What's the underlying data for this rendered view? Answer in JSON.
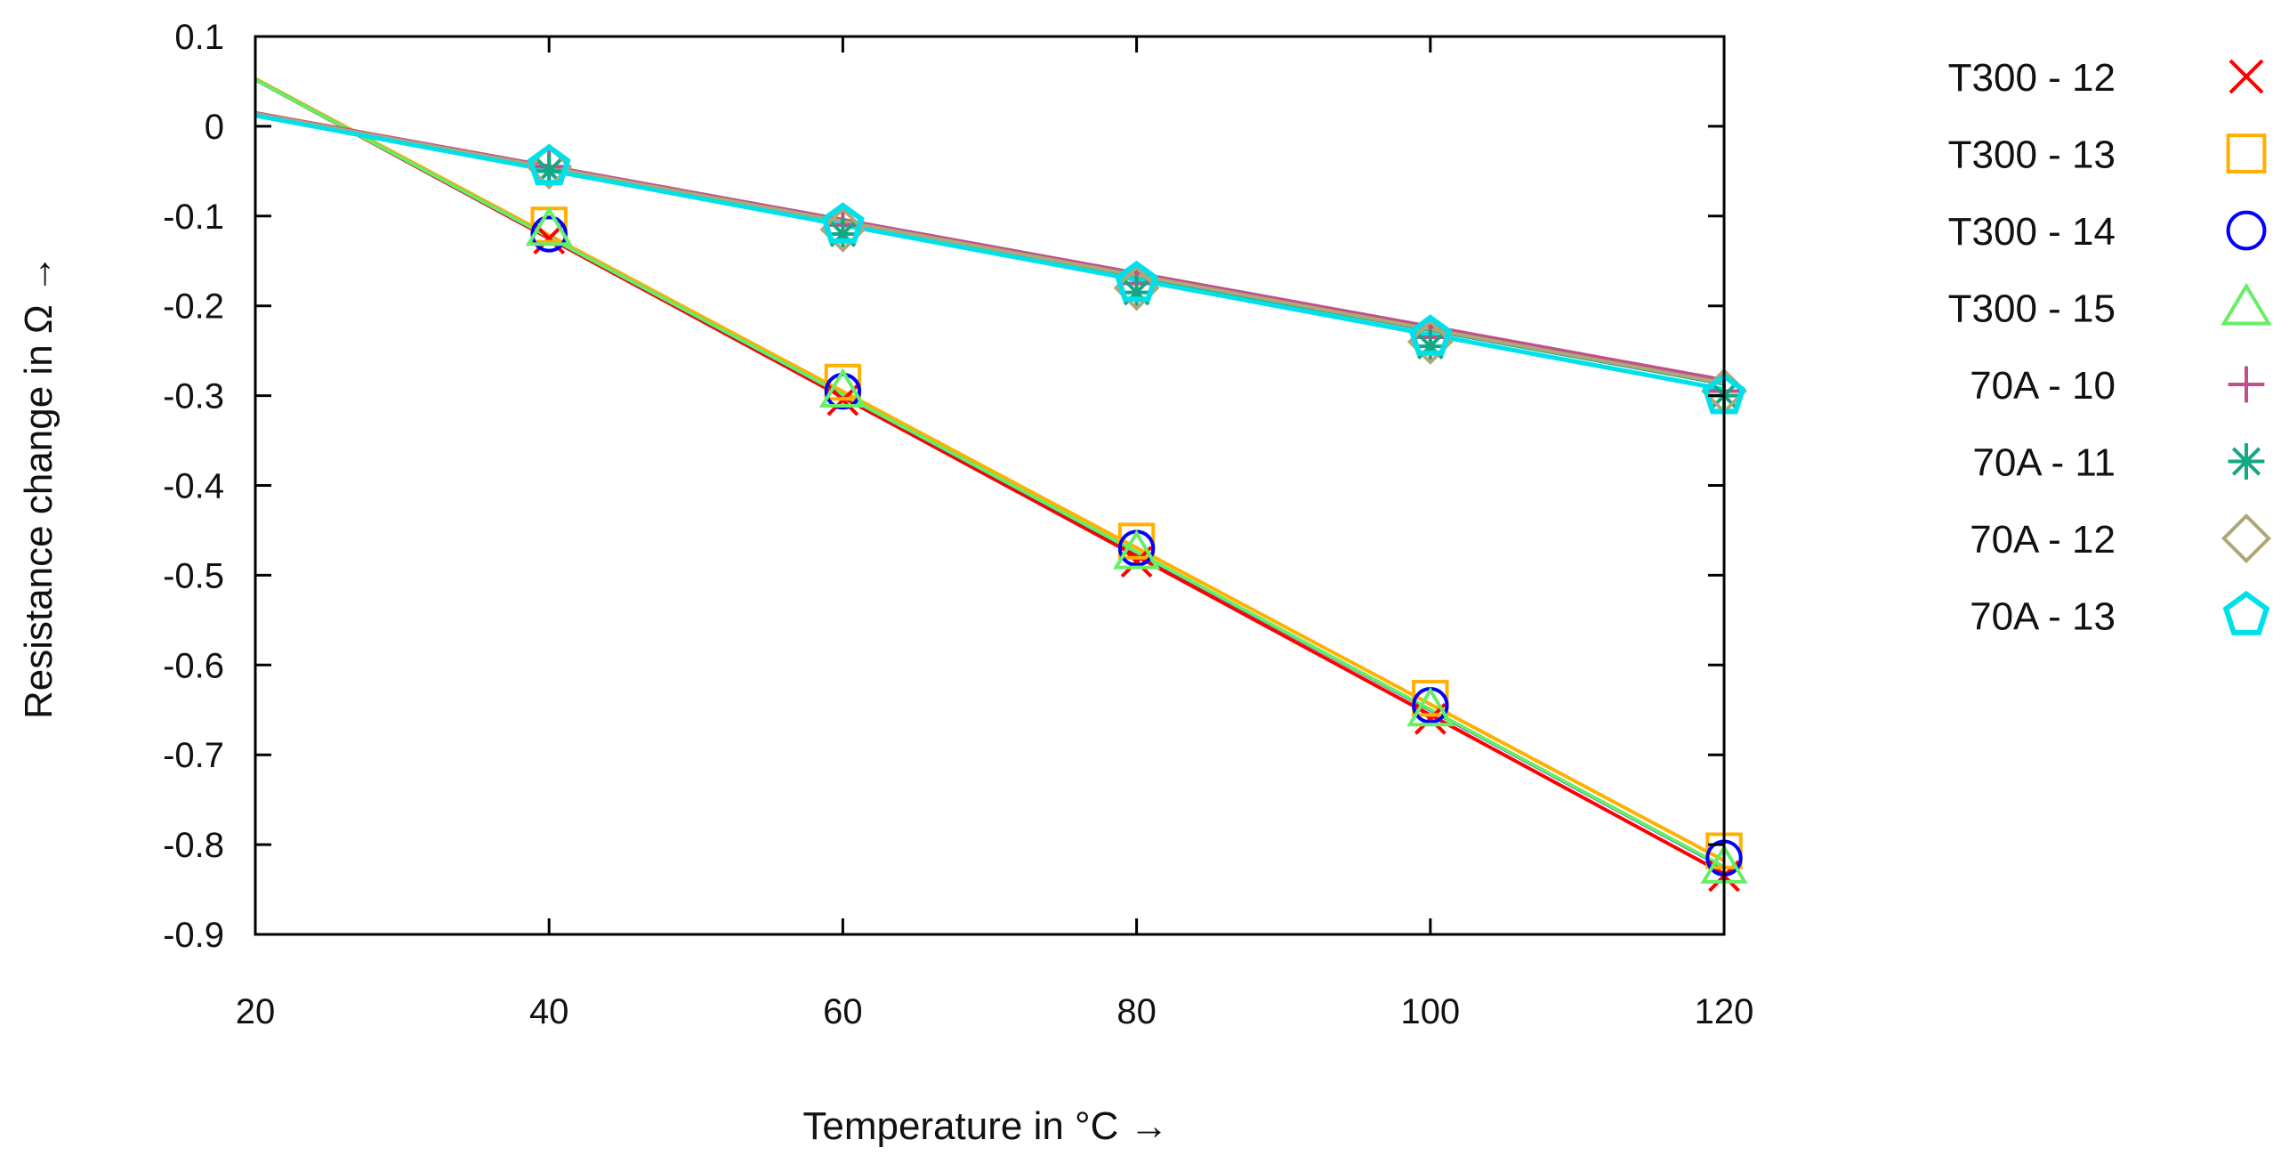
{
  "chart_data": {
    "type": "line",
    "title": "",
    "xlabel": "Temperature in °C →",
    "ylabel": "Resistance change in Ω →",
    "xlim": [
      20,
      120
    ],
    "ylim": [
      -0.9,
      0.1
    ],
    "xticks": [
      20,
      40,
      60,
      80,
      100,
      120
    ],
    "xtick_labels": [
      "20",
      "40",
      "60",
      "80",
      "100",
      "120"
    ],
    "yticks": [
      0.1,
      0,
      -0.1,
      -0.2,
      -0.3,
      -0.4,
      -0.5,
      -0.6,
      -0.7,
      -0.8,
      -0.9
    ],
    "ytick_labels": [
      "0.1",
      "0",
      "-0.1",
      "-0.2",
      "-0.3",
      "-0.4",
      "-0.5",
      "-0.6",
      "-0.7",
      "-0.8",
      "-0.9"
    ],
    "grid": false,
    "legend_position": "outside-right",
    "series": [
      {
        "name": "T300 - 12",
        "color": "#ff0000",
        "marker": "x",
        "x": [
          40,
          60,
          80,
          100,
          120
        ],
        "y": [
          -0.125,
          -0.305,
          -0.485,
          -0.66,
          -0.835
        ],
        "fit": [
          0.052,
          -0.8845
        ]
      },
      {
        "name": "T300 - 13",
        "color": "#ffb000",
        "marker": "square",
        "x": [
          40,
          60,
          80,
          100,
          120
        ],
        "y": [
          -0.11,
          -0.285,
          -0.462,
          -0.637,
          -0.807
        ],
        "fit": [
          0.053,
          -0.8708
        ]
      },
      {
        "name": "T300 - 14",
        "color": "#0000ff",
        "marker": "circle",
        "x": [
          40,
          60,
          80,
          100,
          120
        ],
        "y": [
          -0.12,
          -0.295,
          -0.47,
          -0.645,
          -0.815
        ],
        "fit": [
          0.052,
          -0.8775
        ]
      },
      {
        "name": "T300 - 15",
        "color": "#66ee66",
        "marker": "triangle",
        "x": [
          40,
          60,
          80,
          100,
          120
        ],
        "y": [
          -0.115,
          -0.295,
          -0.475,
          -0.65,
          -0.825
        ],
        "fit": [
          0.052,
          -0.877
        ]
      },
      {
        "name": "70A - 10",
        "color": "#c0508a",
        "marker": "plus",
        "x": [
          40,
          60,
          80,
          100,
          120
        ],
        "y": [
          -0.045,
          -0.11,
          -0.175,
          -0.235,
          -0.295
        ],
        "fit": [
          0.015,
          -0.2975
        ]
      },
      {
        "name": "70A - 11",
        "color": "#13a884",
        "marker": "star",
        "x": [
          40,
          60,
          80,
          100,
          120
        ],
        "y": [
          -0.05,
          -0.12,
          -0.185,
          -0.245,
          -0.3
        ],
        "fit": [
          0.013,
          -0.3
        ]
      },
      {
        "name": "70A - 12",
        "color": "#b0a778",
        "marker": "diamond",
        "x": [
          40,
          60,
          80,
          100,
          120
        ],
        "y": [
          -0.045,
          -0.115,
          -0.18,
          -0.24,
          -0.295
        ],
        "fit": [
          0.014,
          -0.3
        ]
      },
      {
        "name": "70A - 13",
        "color": "#00e0e8",
        "marker": "pentagon",
        "x": [
          40,
          60,
          80,
          100,
          120
        ],
        "y": [
          -0.045,
          -0.11,
          -0.175,
          -0.235,
          -0.3
        ],
        "fit": [
          0.012,
          -0.305
        ]
      }
    ]
  }
}
